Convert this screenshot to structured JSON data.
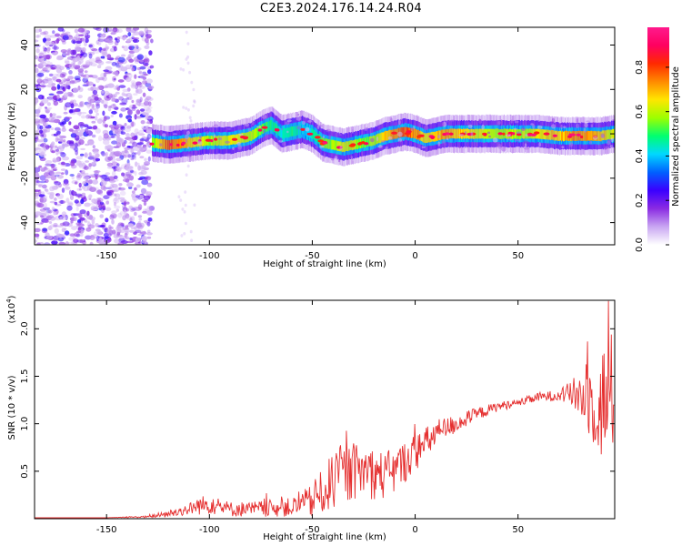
{
  "title": "C2E3.2024.176.14.24.R04",
  "colors": {
    "snr_line": "#e53030",
    "axis": "#000000",
    "colormap": [
      "#ffffff",
      "#c9a6f2",
      "#8a2be2",
      "#3a00ff",
      "#0060ff",
      "#00d8ff",
      "#00ff70",
      "#9cff00",
      "#ffe600",
      "#ff8a00",
      "#ff2a00",
      "#ff0060",
      "#ff1a8c"
    ]
  },
  "chart_data": [
    {
      "type": "heatmap",
      "title": "C2E3.2024.176.14.24.R04",
      "xlabel": "Height of straight line (km)",
      "ylabel": "Frequency (Hz)",
      "xlim": [
        -185,
        97
      ],
      "ylim": [
        -50,
        48
      ],
      "xticks": [
        -150,
        -100,
        -50,
        0,
        50
      ],
      "yticks": [
        -40,
        -20,
        0,
        20,
        40
      ],
      "colorbar": {
        "label": "Normalized spectral amplitude",
        "range": [
          0.0,
          0.98
        ],
        "ticks": [
          0.0,
          0.2,
          0.4,
          0.6,
          0.8
        ]
      },
      "noise_region_x": [
        -185,
        -128
      ],
      "ridge": {
        "x": [
          -128,
          -120,
          -110,
          -100,
          -90,
          -80,
          -75,
          -70,
          -65,
          -60,
          -55,
          -50,
          -45,
          -40,
          -35,
          -30,
          -25,
          -20,
          -15,
          -10,
          -5,
          0,
          5,
          10,
          15,
          20,
          30,
          40,
          50,
          60,
          70,
          80,
          90,
          97
        ],
        "y": [
          -4,
          -5,
          -4,
          -3,
          -3,
          -1,
          2,
          4,
          0,
          1,
          2,
          0,
          -4,
          -5,
          -6,
          -5,
          -4,
          -3,
          -1,
          0,
          1,
          0,
          -2,
          -1,
          0,
          0,
          0,
          0,
          0,
          0,
          -1,
          -1,
          -1,
          0
        ],
        "amplitude": [
          0.55,
          0.8,
          0.7,
          0.6,
          0.65,
          0.6,
          0.55,
          0.5,
          0.45,
          0.5,
          0.4,
          0.45,
          0.55,
          0.6,
          0.65,
          0.6,
          0.55,
          0.6,
          0.7,
          0.75,
          0.8,
          0.75,
          0.65,
          0.7,
          0.75,
          0.7,
          0.65,
          0.6,
          0.6,
          0.65,
          0.7,
          0.75,
          0.7,
          0.6
        ]
      }
    },
    {
      "type": "line",
      "xlabel": "Height of straight line (km)",
      "ylabel": "SNR (10 * v/v)",
      "scale_label": "(x10",
      "scale_exp": "4",
      "scale_close": ")",
      "xlim": [
        -185,
        97
      ],
      "ylim": [
        0,
        2.3
      ],
      "xticks": [
        -150,
        -100,
        -50,
        0,
        50
      ],
      "yticks": [
        0.5,
        1.0,
        1.5,
        2.0
      ],
      "series": [
        {
          "x": [
            -185,
            -170,
            -150,
            -130,
            -120,
            -110,
            -105,
            -100,
            -90,
            -80,
            -70,
            -60,
            -50,
            -45,
            -40,
            -35,
            -30,
            -25,
            -20,
            -15,
            -10,
            -5,
            0,
            5,
            10,
            15,
            20,
            30,
            40,
            50,
            60,
            70,
            75,
            80,
            85,
            90,
            95,
            97
          ],
          "y": [
            0.01,
            0.01,
            0.01,
            0.02,
            0.05,
            0.1,
            0.14,
            0.15,
            0.1,
            0.1,
            0.11,
            0.12,
            0.18,
            0.28,
            0.4,
            0.45,
            0.5,
            0.5,
            0.48,
            0.45,
            0.5,
            0.6,
            0.7,
            0.78,
            0.9,
            0.95,
            1.0,
            1.1,
            1.18,
            1.22,
            1.28,
            1.3,
            1.32,
            1.3,
            1.25,
            1.2,
            1.3,
            1.3
          ],
          "noise_amplitude": [
            0.0,
            0.0,
            0.0,
            0.01,
            0.04,
            0.06,
            0.1,
            0.1,
            0.08,
            0.08,
            0.09,
            0.1,
            0.18,
            0.25,
            0.3,
            0.32,
            0.3,
            0.28,
            0.28,
            0.25,
            0.25,
            0.22,
            0.2,
            0.18,
            0.15,
            0.12,
            0.1,
            0.07,
            0.05,
            0.04,
            0.05,
            0.06,
            0.12,
            0.25,
            0.4,
            0.6,
            0.7,
            0.6
          ]
        }
      ]
    }
  ]
}
